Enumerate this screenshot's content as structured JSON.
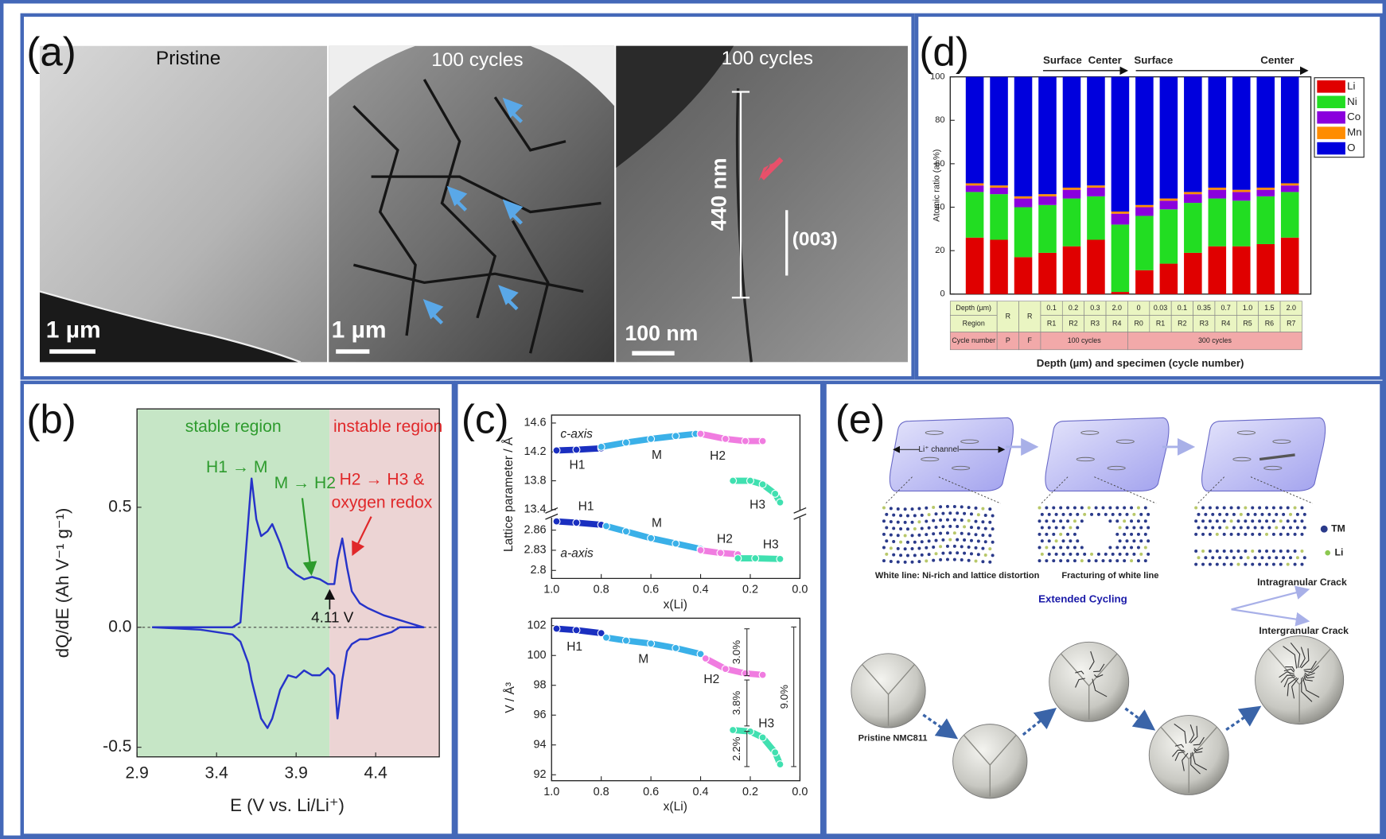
{
  "panel_labels": [
    "(a)",
    "(b)",
    "(c)",
    "(d)",
    "(e)"
  ],
  "panel_a": {
    "images": [
      {
        "title": "Pristine",
        "scale_bar": "1 µm"
      },
      {
        "title": "100 cycles",
        "scale_bar": "1 µm"
      },
      {
        "title": "100 cycles",
        "scale_bar": "100 nm",
        "length": "440 nm",
        "plane": "(003)"
      }
    ]
  },
  "chart_data": [
    {
      "type": "line",
      "xlabel": "E (V vs. Li/Li⁺)",
      "ylabel": "dQ/dE (Ah V⁻¹ g⁻¹)",
      "xlim": [
        2.9,
        4.8
      ],
      "ylim": [
        -0.54,
        0.91
      ],
      "xticks": [
        2.9,
        3.4,
        3.9,
        4.4
      ],
      "yticks": [
        -0.5,
        {
          "value": 0,
          "label": "0.0"
        },
        0.5
      ],
      "regions": [
        {
          "label": "stable region",
          "range": [
            2.9,
            4.11
          ],
          "color": "#c6e6c6",
          "text_color": "#2e9b2e"
        },
        {
          "label": "instable region",
          "range": [
            4.11,
            4.8
          ],
          "color": "#ecd4d4",
          "text_color": "#e0282a"
        }
      ],
      "annotations": [
        "H1 → M",
        "M → H2",
        "H2 → H3 &",
        "oxygen redox",
        "4.11 V"
      ],
      "x": [
        3.0,
        3.3,
        3.5,
        3.55,
        3.6,
        3.62,
        3.65,
        3.68,
        3.72,
        3.75,
        3.8,
        3.85,
        3.9,
        3.95,
        4.0,
        4.05,
        4.1,
        4.14,
        4.16,
        4.19,
        4.22,
        4.25,
        4.3,
        4.35,
        4.45,
        4.5,
        4.55,
        4.6,
        4.7
      ],
      "series": [
        {
          "color": "#2633c9",
          "values": [
            0,
            0,
            0,
            0.02,
            0.45,
            0.62,
            0.45,
            0.38,
            0.4,
            0.43,
            0.35,
            0.25,
            0.22,
            0.2,
            0.21,
            0.2,
            0.18,
            0.18,
            0.28,
            0.37,
            0.25,
            0.15,
            0.1,
            0.08,
            0.05,
            0.04,
            0.03,
            0.02,
            0
          ]
        },
        {
          "color": "#2633c9",
          "values": [
            0,
            -0.01,
            -0.03,
            -0.06,
            -0.15,
            -0.22,
            -0.3,
            -0.38,
            -0.42,
            -0.38,
            -0.26,
            -0.2,
            -0.21,
            -0.18,
            -0.2,
            -0.2,
            -0.17,
            -0.2,
            -0.38,
            -0.22,
            -0.1,
            -0.07,
            -0.05,
            -0.05,
            -0.03,
            -0.02,
            0,
            0,
            0
          ]
        }
      ]
    },
    {
      "type": "line",
      "markers": true,
      "ylabel": "Lattice parameter / Å",
      "xlim": [
        1,
        0
      ],
      "ylim": [
        13.34,
        14.71
      ],
      "yticks": [
        13.4,
        13.8,
        14.2,
        14.6
      ],
      "annotations": [
        "c-axis"
      ],
      "series": [
        {
          "name": "H1",
          "color": "#1a2fc0",
          "x": [
            0.98,
            0.9,
            0.8
          ],
          "values": [
            14.22,
            14.23,
            14.25
          ]
        },
        {
          "name": "M",
          "color": "#3ab0e8",
          "x": [
            0.8,
            0.7,
            0.6,
            0.5,
            0.42
          ],
          "values": [
            14.27,
            14.33,
            14.38,
            14.42,
            14.45
          ]
        },
        {
          "name": "H2",
          "color": "#f07ce0",
          "x": [
            0.4,
            0.3,
            0.22,
            0.15
          ],
          "values": [
            14.45,
            14.38,
            14.35,
            14.35
          ]
        },
        {
          "name": "H3",
          "color": "#40e0b0",
          "x": [
            0.27,
            0.2,
            0.15,
            0.1,
            0.08
          ],
          "values": [
            13.8,
            13.8,
            13.75,
            13.62,
            13.5
          ]
        }
      ]
    },
    {
      "type": "line",
      "markers": true,
      "xlabel": "x(Li)",
      "xlim": [
        1,
        0
      ],
      "ylim": [
        2.788,
        2.884
      ],
      "xticks": [
        {
          "value": 1,
          "label": "1.0"
        },
        0.8,
        0.6,
        0.4,
        0.2,
        {
          "value": 0,
          "label": "0.0"
        }
      ],
      "yticks": [
        2.8,
        2.83,
        2.86
      ],
      "annotations": [
        "a-axis"
      ],
      "series": [
        {
          "name": "H1",
          "color": "#1a2fc0",
          "x": [
            0.98,
            0.9,
            0.8
          ],
          "values": [
            2.873,
            2.871,
            2.868
          ]
        },
        {
          "name": "M",
          "color": "#3ab0e8",
          "x": [
            0.78,
            0.7,
            0.6,
            0.5,
            0.4
          ],
          "values": [
            2.866,
            2.858,
            2.848,
            2.84,
            2.832
          ]
        },
        {
          "name": "H2",
          "color": "#f07ce0",
          "x": [
            0.4,
            0.32,
            0.25
          ],
          "values": [
            2.83,
            2.826,
            2.824
          ]
        },
        {
          "name": "H3",
          "color": "#40e0b0",
          "x": [
            0.25,
            0.18,
            0.08
          ],
          "values": [
            2.818,
            2.818,
            2.817
          ]
        }
      ]
    },
    {
      "type": "line",
      "markers": true,
      "xlabel": "x(Li)",
      "ylabel": "V / Å³",
      "xlim": [
        1,
        0
      ],
      "ylim": [
        91.6,
        102.5
      ],
      "xticks": [
        {
          "value": 1,
          "label": "1.0"
        },
        0.8,
        0.6,
        0.4,
        0.2,
        {
          "value": 0,
          "label": "0.0"
        }
      ],
      "yticks": [
        92,
        94,
        96,
        98,
        100,
        102
      ],
      "annotations": [
        "3.0%",
        "3.8%",
        "2.2%",
        "9.0%"
      ],
      "series": [
        {
          "name": "H1",
          "color": "#1a2fc0",
          "x": [
            0.98,
            0.9,
            0.8
          ],
          "values": [
            101.8,
            101.7,
            101.5
          ]
        },
        {
          "name": "M",
          "color": "#3ab0e8",
          "x": [
            0.78,
            0.7,
            0.6,
            0.5,
            0.4
          ],
          "values": [
            101.2,
            101,
            100.8,
            100.5,
            100.1
          ]
        },
        {
          "name": "H2",
          "color": "#f07ce0",
          "x": [
            0.38,
            0.3,
            0.22,
            0.15
          ],
          "values": [
            99.8,
            99.1,
            98.8,
            98.7
          ]
        },
        {
          "name": "H3",
          "color": "#40e0b0",
          "x": [
            0.27,
            0.2,
            0.15,
            0.1,
            0.08
          ],
          "values": [
            95,
            94.9,
            94.5,
            93.5,
            92.7
          ]
        }
      ]
    },
    {
      "type": "bar",
      "stacked": true,
      "ylabel": "Atomic ratio (at.%)",
      "xlabel": "Depth (µm) and specimen (cycle number)",
      "ylim": [
        0,
        100
      ],
      "yticks": [
        0,
        20,
        40,
        60,
        80,
        100
      ],
      "legend": "right",
      "annotations": [
        "Surface",
        "Center",
        "Surface",
        "Center"
      ],
      "categories": [
        "R",
        "R",
        "R1",
        "R2",
        "R3",
        "R4",
        "R0",
        "R1",
        "R2",
        "R3",
        "R4",
        "R5",
        "R6",
        "R7"
      ],
      "table": {
        "row_labels": [
          "Depth (µm)",
          "Region",
          "Cycle number"
        ],
        "depth": [
          null,
          null,
          "0.1",
          "0.2",
          "0.3",
          "2.0",
          "0",
          "0.03",
          "0.1",
          "0.35",
          "0.7",
          "1.0",
          "1.5",
          "2.0"
        ],
        "cycles": [
          "P",
          "F",
          "100 cycles",
          null,
          null,
          null,
          "300 cycles",
          null,
          null,
          null,
          null,
          null,
          null,
          null
        ]
      },
      "series": [
        {
          "name": "Li",
          "color": "#e00000",
          "values": [
            26,
            25,
            17,
            19,
            22,
            25,
            1,
            11,
            14,
            19,
            22,
            22,
            23,
            26
          ]
        },
        {
          "name": "Ni",
          "color": "#22dd22",
          "values": [
            21,
            21,
            23,
            22,
            22,
            20,
            31,
            25,
            25,
            23,
            22,
            21,
            22,
            21
          ]
        },
        {
          "name": "Co",
          "color": "#8a00dd",
          "values": [
            3,
            3,
            4,
            4,
            4,
            4,
            5,
            4,
            4,
            4,
            4,
            4,
            3,
            3
          ]
        },
        {
          "name": "Mn",
          "color": "#ff8c00",
          "values": [
            1,
            1,
            1,
            1,
            1,
            1,
            1,
            1,
            1,
            1,
            1,
            1,
            1,
            1
          ]
        },
        {
          "name": "O",
          "color": "#0000dd",
          "values": [
            49,
            50,
            55,
            54,
            51,
            50,
            62,
            59,
            56,
            53,
            51,
            52,
            51,
            49
          ]
        }
      ]
    }
  ],
  "panel_e": {
    "channel": "Li⁺ channel",
    "stages": [
      "White line: Ni-rich and lattice distortion",
      "Fracturing of white line",
      "Intragranular Crack"
    ],
    "legend": [
      "TM",
      "Li"
    ],
    "process": "Extended Cycling",
    "outcome": "Intergranular Crack",
    "start": "Pristine NMC811"
  }
}
